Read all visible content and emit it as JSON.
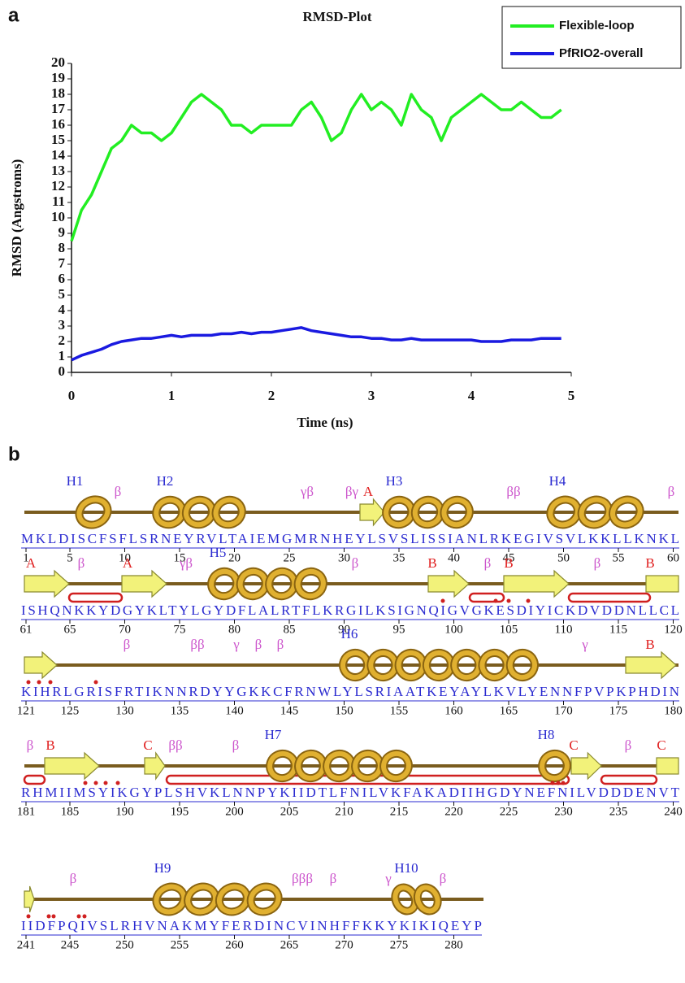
{
  "chart_data": {
    "type": "line",
    "title": "RMSD-Plot",
    "x_label": "Time (ns)",
    "y_label": "RMSD (Angstroms)",
    "x": [
      0,
      0.1,
      0.2,
      0.3,
      0.4,
      0.5,
      0.6,
      0.7,
      0.8,
      0.9,
      1,
      1.1,
      1.2,
      1.3,
      1.4,
      1.5,
      1.6,
      1.7,
      1.8,
      1.9,
      2,
      2.1,
      2.2,
      2.3,
      2.4,
      2.5,
      2.6,
      2.7,
      2.8,
      2.9,
      3,
      3.1,
      3.2,
      3.3,
      3.4,
      3.5,
      3.6,
      3.7,
      3.8,
      3.9,
      4,
      4.1,
      4.2,
      4.3,
      4.4,
      4.5,
      4.6,
      4.7,
      4.8,
      4.9
    ],
    "series": [
      {
        "name": "Flexible-loop",
        "color": "#22ee22",
        "values": [
          8.5,
          10.5,
          11.5,
          13,
          14.5,
          15,
          16,
          15.5,
          15.5,
          15,
          15.5,
          16.5,
          17.5,
          18,
          17.5,
          17,
          16,
          16,
          15.5,
          16,
          16,
          16,
          16,
          17,
          17.5,
          16.5,
          15,
          15.5,
          17,
          18,
          17,
          17.5,
          17,
          16,
          18,
          17,
          16.5,
          15,
          16.5,
          17,
          17.5,
          18,
          17.5,
          17,
          17,
          17.5,
          17,
          16.5,
          16.5,
          17
        ]
      },
      {
        "name": "PfRIO2-overall",
        "color": "#1a1ae0",
        "values": [
          0.8,
          1.1,
          1.3,
          1.5,
          1.8,
          2.0,
          2.1,
          2.2,
          2.2,
          2.3,
          2.4,
          2.3,
          2.4,
          2.4,
          2.4,
          2.5,
          2.5,
          2.6,
          2.5,
          2.6,
          2.6,
          2.7,
          2.8,
          2.9,
          2.7,
          2.6,
          2.5,
          2.4,
          2.3,
          2.3,
          2.2,
          2.2,
          2.1,
          2.1,
          2.2,
          2.1,
          2.1,
          2.1,
          2.1,
          2.1,
          2.1,
          2.0,
          2.0,
          2.0,
          2.1,
          2.1,
          2.1,
          2.2,
          2.2,
          2.2
        ]
      }
    ],
    "xlim": [
      0,
      5
    ],
    "xticks": [
      0,
      1,
      2,
      3,
      4,
      5
    ],
    "ylim": [
      0,
      20
    ],
    "yticks": [
      0,
      1,
      2,
      3,
      4,
      5,
      6,
      7,
      8,
      9,
      10,
      11,
      12,
      13,
      14,
      15,
      16,
      17,
      18,
      19,
      20
    ],
    "legend": "upper right",
    "grid": false
  },
  "panel_labels": [
    "a",
    "b"
  ],
  "topology": {
    "rows": [
      {
        "sequence": "MKLDISCFSFLSRNEYRVLTAIEMGMRNHEYLSVSLISSIANLRKEGIVSVLKKLLKNKL",
        "ticks": [
          1,
          5,
          10,
          15,
          20,
          25,
          30,
          35,
          40,
          45,
          50,
          55,
          60
        ],
        "annotations": [
          "H1",
          "β",
          "H2",
          "γβ",
          "βγ",
          "A",
          "H3",
          "ββ",
          "H4",
          "β"
        ]
      },
      {
        "sequence": "ISHQNKKYDGYKLTYLGYDFLALRTFLKRGILKSIGNQIGVGKESDIYICKDVDDNLLCL",
        "ticks": [
          61,
          65,
          70,
          75,
          80,
          85,
          90,
          95,
          100,
          105,
          110,
          115,
          120
        ],
        "annotations": [
          "A",
          "β",
          "A",
          "γβ",
          "H5",
          "β",
          "B",
          "β",
          "B",
          "β",
          "B"
        ]
      },
      {
        "sequence": "KIHRLGRISFRTIKNNRDYYGKKCFRNWLYLSRIAATKEYAYLKVLYENNFPVPKPHDIN",
        "ticks": [
          121,
          125,
          130,
          135,
          140,
          145,
          150,
          155,
          160,
          165,
          170,
          175,
          180
        ],
        "annotations": [
          "β",
          "ββ",
          "γ",
          "β",
          "β",
          "H6",
          "γ",
          "B"
        ]
      },
      {
        "sequence": "RHMIIMSYIKGYPLSHVKLNNPYKIIDTLFNILVKFAKADIIHGDYNEFNILVDDDENVT",
        "ticks": [
          181,
          185,
          190,
          195,
          200,
          205,
          210,
          215,
          220,
          225,
          230,
          235,
          240
        ],
        "annotations": [
          "β",
          "B",
          "C",
          "ββ",
          "β",
          "H7",
          "H8",
          "C",
          "β",
          "C"
        ]
      },
      {
        "sequence": "IIDFPQIVSLRHVNAKMYFERDINCVINHFFKKYKIKIQEYP",
        "ticks": [
          241,
          245,
          250,
          255,
          260,
          265,
          270,
          275,
          280
        ],
        "annotations": [
          "β",
          "H9",
          "βββ",
          "β",
          "γ",
          "H10",
          "β"
        ]
      }
    ]
  }
}
